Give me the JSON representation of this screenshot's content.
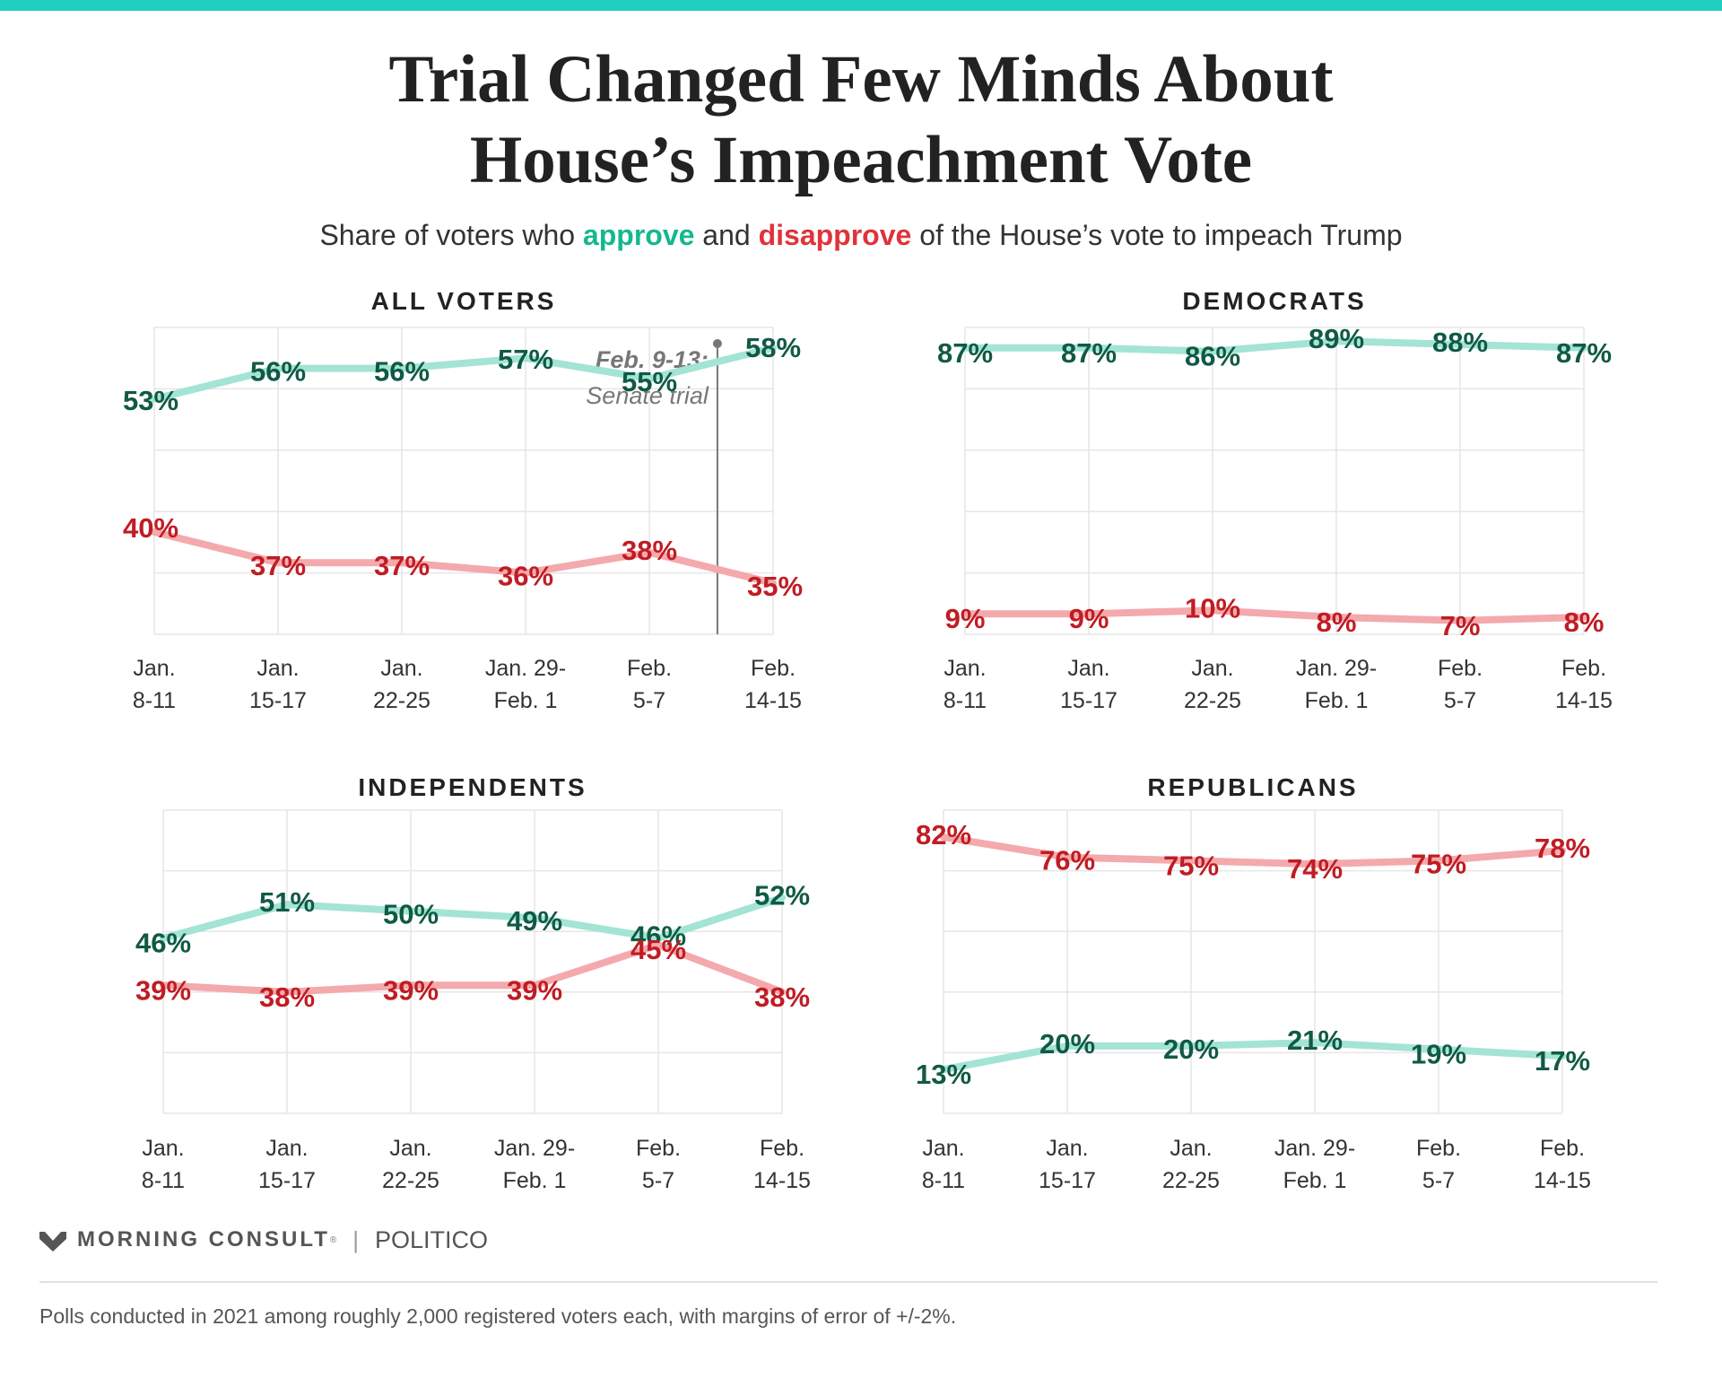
{
  "title_lines": [
    "Trial Changed Few Minds About",
    "House’s Impeachment Vote"
  ],
  "subtitle": {
    "pre": "Share of voters who ",
    "approve_word": "approve",
    "mid": " and ",
    "disapprove_word": "disapprove",
    "post": " of the House’s vote to impeach Trump"
  },
  "colors": {
    "top_bar": "#1ecfc2",
    "approve_text": "#14b890",
    "disapprove_text": "#e0333a",
    "approve_line": "#a3e4d4",
    "disapprove_line": "#f4a9ac",
    "approve_label": "#105a44",
    "disapprove_label": "#c01c23",
    "annotation": "#777777"
  },
  "chart_data": [
    {
      "type": "line",
      "title": "ALL VOTERS",
      "categories": [
        [
          "Jan.",
          "8-11"
        ],
        [
          "Jan.",
          "15-17"
        ],
        [
          "Jan.",
          "22-25"
        ],
        [
          "Jan. 29-",
          "Feb. 1"
        ],
        [
          "Feb.",
          "5-7"
        ],
        [
          "Feb.",
          "14-15"
        ]
      ],
      "series": [
        {
          "name": "approve",
          "values": [
            53,
            56,
            56,
            57,
            55,
            58
          ]
        },
        {
          "name": "disapprove",
          "values": [
            40,
            37,
            37,
            36,
            38,
            35
          ]
        }
      ],
      "ylim": [
        30,
        60
      ],
      "annotation": {
        "at_index": 4.55,
        "bold": "Feb. 9-13:",
        "text": "Senate trial"
      }
    },
    {
      "type": "line",
      "title": "DEMOCRATS",
      "categories": [
        [
          "Jan.",
          "8-11"
        ],
        [
          "Jan.",
          "15-17"
        ],
        [
          "Jan.",
          "22-25"
        ],
        [
          "Jan. 29-",
          "Feb. 1"
        ],
        [
          "Feb.",
          "5-7"
        ],
        [
          "Feb.",
          "14-15"
        ]
      ],
      "series": [
        {
          "name": "approve",
          "values": [
            87,
            87,
            86,
            89,
            88,
            87
          ]
        },
        {
          "name": "disapprove",
          "values": [
            9,
            9,
            10,
            8,
            7,
            8
          ]
        }
      ],
      "ylim": [
        3,
        93
      ]
    },
    {
      "type": "line",
      "title": "INDEPENDENTS",
      "categories": [
        [
          "Jan.",
          "8-11"
        ],
        [
          "Jan.",
          "15-17"
        ],
        [
          "Jan.",
          "22-25"
        ],
        [
          "Jan. 29-",
          "Feb. 1"
        ],
        [
          "Feb.",
          "5-7"
        ],
        [
          "Feb.",
          "14-15"
        ]
      ],
      "series": [
        {
          "name": "approve",
          "values": [
            46,
            51,
            50,
            49,
            46,
            52
          ]
        },
        {
          "name": "disapprove",
          "values": [
            39,
            38,
            39,
            39,
            45,
            38
          ]
        }
      ],
      "ylim": [
        20,
        65
      ]
    },
    {
      "type": "line",
      "title": "REPUBLICANS",
      "categories": [
        [
          "Jan.",
          "8-11"
        ],
        [
          "Jan.",
          "15-17"
        ],
        [
          "Jan.",
          "22-25"
        ],
        [
          "Jan. 29-",
          "Feb. 1"
        ],
        [
          "Feb.",
          "5-7"
        ],
        [
          "Feb.",
          "14-15"
        ]
      ],
      "series": [
        {
          "name": "approve",
          "values": [
            13,
            20,
            20,
            21,
            19,
            17
          ]
        },
        {
          "name": "disapprove",
          "values": [
            82,
            76,
            75,
            74,
            75,
            78
          ]
        }
      ],
      "ylim": [
        0,
        90
      ]
    }
  ],
  "footer": {
    "logo_text": "MORNING CONSULT",
    "logo_mark": "®",
    "logo_icon": "morning-consult-m-icon",
    "separator": "|",
    "partner": "POLITICO"
  },
  "footnote": "Polls conducted in 2021 among roughly 2,000 registered voters each, with margins of error of +/-2%."
}
